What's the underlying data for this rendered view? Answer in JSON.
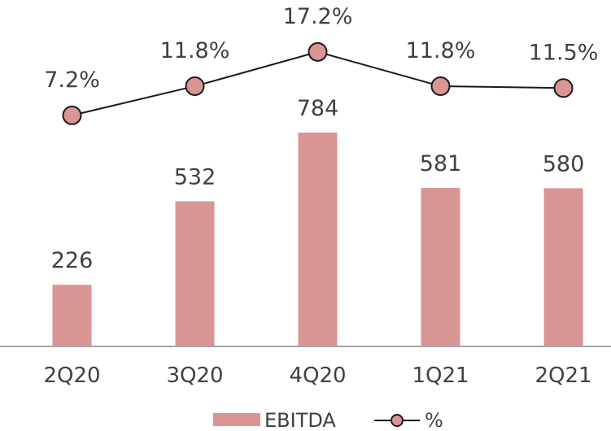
{
  "chart_data": {
    "type": "bar",
    "categories": [
      "2Q20",
      "3Q20",
      "4Q20",
      "1Q21",
      "2Q21"
    ],
    "series": [
      {
        "name": "EBITDA",
        "type": "bar",
        "values": [
          226,
          532,
          784,
          581,
          580
        ],
        "labels": [
          "226",
          "532",
          "784",
          "581",
          "580"
        ]
      },
      {
        "name": "%",
        "type": "line",
        "values": [
          7.2,
          11.8,
          17.2,
          11.8,
          11.5
        ],
        "labels": [
          "7.2%",
          "11.8%",
          "17.2%",
          "11.8%",
          "11.5%"
        ]
      }
    ],
    "title": "",
    "xlabel": "",
    "ylabel": "",
    "legend_position": "bottom-center",
    "grid": false,
    "colors": {
      "bar": "#d99594",
      "line": "#1a1a1a",
      "marker": "#d99594",
      "text": "#404040",
      "axis": "#a6a6a6"
    }
  }
}
